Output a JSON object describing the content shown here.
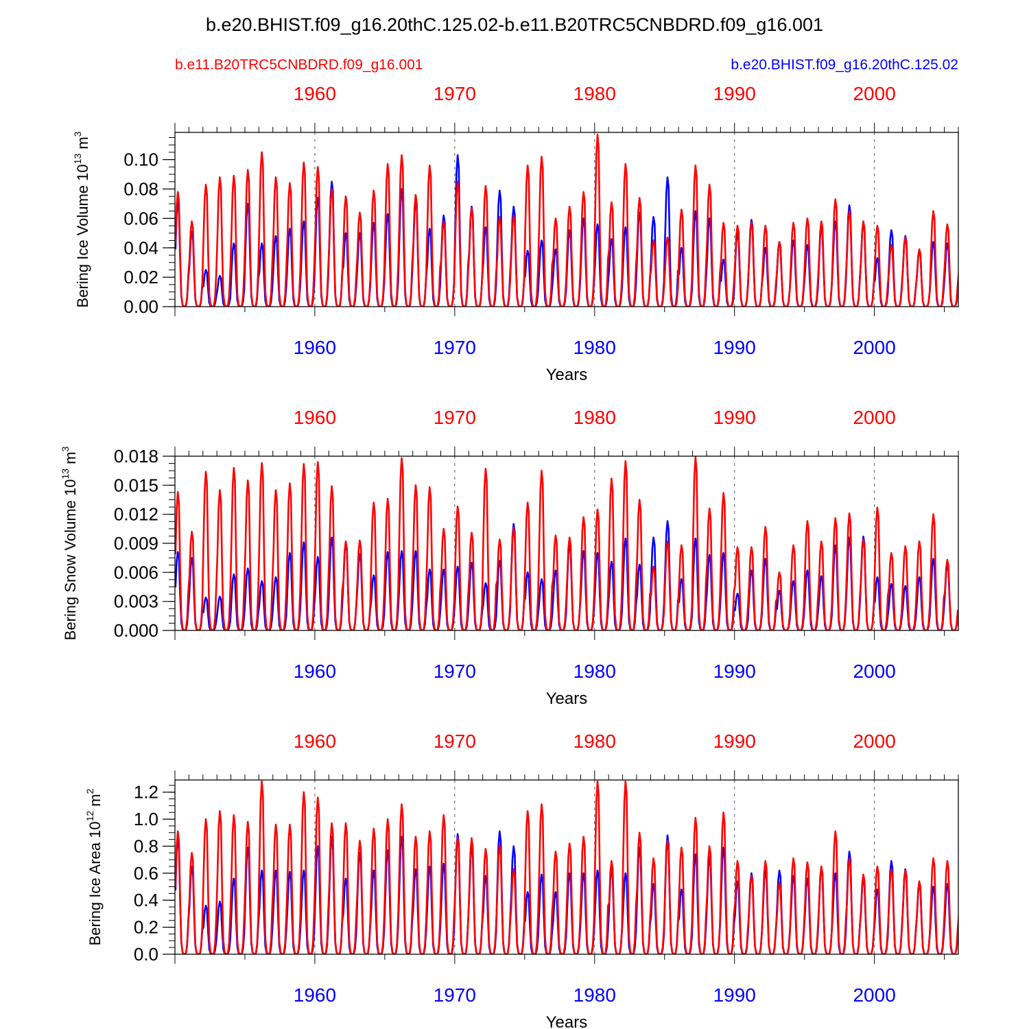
{
  "title": "b.e20.BHIST.f09_g16.20thC.125.02-b.e11.B20TRC5CNBDRD.f09_g16.001",
  "colors": {
    "red": "#ff0000",
    "blue": "#0000ff",
    "axis": "#000000",
    "gridline": "#555555"
  },
  "case_labels": {
    "red": "b.e11.B20TRC5CNBDRD.f09_g16.001",
    "blue": "b.e20.BHIST.f09_g16.20thC.125.02"
  },
  "chart_data": [
    {
      "type": "line",
      "name": "bering-ice-volume",
      "ylabel": {
        "main": "Bering Ice Volume 10",
        "sup": "13",
        "unit": " m",
        "unit_sup": "3"
      },
      "xlabel": "Years",
      "xlim": [
        1950,
        2006
      ],
      "top_axis_years": [
        "1960",
        "1970",
        "1980",
        "1990",
        "2000"
      ],
      "bottom_axis_years": [
        "1960",
        "1970",
        "1980",
        "1990",
        "2000"
      ],
      "ylim": [
        0,
        0.1185
      ],
      "yticks": [
        "0.00",
        "0.02",
        "0.04",
        "0.06",
        "0.08",
        "0.10"
      ],
      "ytick_values": [
        0,
        0.02,
        0.04,
        0.06,
        0.08,
        0.1
      ],
      "minor_step": 0.005,
      "first_year": 1950,
      "series": [
        {
          "name": "b.e11.B20TRC5CNBDRD.f09_g16.001",
          "color": "red",
          "annual_max": [
            0.078,
            0.058,
            0.083,
            0.088,
            0.089,
            0.093,
            0.105,
            0.088,
            0.084,
            0.098,
            0.095,
            0.08,
            0.075,
            0.064,
            0.079,
            0.097,
            0.103,
            0.076,
            0.096,
            0.058,
            0.085,
            0.067,
            0.082,
            0.061,
            0.062,
            0.096,
            0.102,
            0.06,
            0.068,
            0.078,
            0.117,
            0.071,
            0.097,
            0.074,
            0.045,
            0.047,
            0.066,
            0.096,
            0.083,
            0.057,
            0.055,
            0.057,
            0.055,
            0.044,
            0.057,
            0.06,
            0.058,
            0.073,
            0.065,
            0.058,
            0.055,
            0.042,
            0.047,
            0.039,
            0.065,
            0.056,
            0.044
          ]
        },
        {
          "name": "b.e20.BHIST.f09_g16.20thC.125.02",
          "color": "blue",
          "annual_max": [
            0.071,
            0.051,
            0.025,
            0.021,
            0.043,
            0.07,
            0.043,
            0.048,
            0.053,
            0.058,
            0.074,
            0.085,
            0.05,
            0.05,
            0.057,
            0.063,
            0.08,
            0.072,
            0.053,
            0.062,
            0.103,
            0.068,
            0.054,
            0.079,
            0.068,
            0.038,
            0.045,
            0.039,
            0.052,
            0.06,
            0.056,
            0.046,
            0.054,
            0.064,
            0.061,
            0.088,
            0.04,
            0.065,
            0.06,
            0.032,
            0.05,
            0.059,
            0.04,
            0.044,
            0.045,
            0.042,
            0.054,
            0.058,
            0.069,
            0.057,
            0.033,
            0.052,
            0.048,
            0.038,
            0.044,
            0.043,
            0.014
          ]
        }
      ]
    },
    {
      "type": "line",
      "name": "bering-snow-volume",
      "ylabel": {
        "main": "Bering Snow Volume 10",
        "sup": "13",
        "unit": " m",
        "unit_sup": "3"
      },
      "xlabel": "Years",
      "xlim": [
        1950,
        2006
      ],
      "top_axis_years": [
        "1960",
        "1970",
        "1980",
        "1990",
        "2000"
      ],
      "bottom_axis_years": [
        "1960",
        "1970",
        "1980",
        "1990",
        "2000"
      ],
      "ylim": [
        0,
        0.018
      ],
      "yticks": [
        "0.000",
        "0.003",
        "0.006",
        "0.009",
        "0.012",
        "0.015",
        "0.018"
      ],
      "ytick_values": [
        0,
        0.003,
        0.006,
        0.009,
        0.012,
        0.015,
        0.018
      ],
      "minor_step": 0.00075,
      "first_year": 1950,
      "series": [
        {
          "name": "b.e11.B20TRC5CNBDRD.f09_g16.001",
          "color": "red",
          "annual_max": [
            0.0143,
            0.0102,
            0.0164,
            0.0145,
            0.0168,
            0.0155,
            0.0173,
            0.0145,
            0.0152,
            0.0172,
            0.0174,
            0.0149,
            0.0092,
            0.0093,
            0.0132,
            0.0136,
            0.0178,
            0.015,
            0.0148,
            0.0105,
            0.0128,
            0.0101,
            0.0167,
            0.0094,
            0.0106,
            0.0132,
            0.0165,
            0.0098,
            0.0096,
            0.0117,
            0.0125,
            0.0157,
            0.0175,
            0.0135,
            0.0066,
            0.0092,
            0.0088,
            0.0179,
            0.0126,
            0.0142,
            0.0086,
            0.0086,
            0.0107,
            0.006,
            0.0088,
            0.0113,
            0.0092,
            0.0116,
            0.0121,
            0.0094,
            0.0127,
            0.008,
            0.0087,
            0.0092,
            0.012,
            0.0073,
            0.0006
          ]
        },
        {
          "name": "b.e20.BHIST.f09_g16.20thC.125.02",
          "color": "blue",
          "annual_max": [
            0.0081,
            0.0075,
            0.0034,
            0.0035,
            0.0058,
            0.0064,
            0.0051,
            0.0055,
            0.008,
            0.0091,
            0.0076,
            0.0096,
            0.009,
            0.0079,
            0.0057,
            0.0081,
            0.0082,
            0.0082,
            0.0063,
            0.0063,
            0.0066,
            0.007,
            0.0049,
            0.0072,
            0.011,
            0.006,
            0.0053,
            0.0062,
            0.0089,
            0.0082,
            0.008,
            0.0071,
            0.0095,
            0.0068,
            0.0096,
            0.0113,
            0.0053,
            0.0095,
            0.0078,
            0.008,
            0.0038,
            0.0062,
            0.0074,
            0.0041,
            0.0051,
            0.0062,
            0.0056,
            0.0088,
            0.0096,
            0.0097,
            0.0055,
            0.0048,
            0.0046,
            0.0055,
            0.0074,
            0.0068,
            0.0006
          ]
        }
      ]
    },
    {
      "type": "line",
      "name": "bering-ice-area",
      "ylabel": {
        "main": "Bering Ice Area 10",
        "sup": "12",
        "unit": " m",
        "unit_sup": "2"
      },
      "xlabel": "Years",
      "xlim": [
        1950,
        2006
      ],
      "top_axis_years": [
        "1960",
        "1970",
        "1980",
        "1990",
        "2000"
      ],
      "bottom_axis_years": [
        "1960",
        "1970",
        "1980",
        "1990",
        "2000"
      ],
      "ylim": [
        0,
        1.29
      ],
      "yticks": [
        "0.0",
        "0.2",
        "0.4",
        "0.6",
        "0.8",
        "1.0",
        "1.2"
      ],
      "ytick_values": [
        0,
        0.2,
        0.4,
        0.6,
        0.8,
        1.0,
        1.2
      ],
      "minor_step": 0.05,
      "first_year": 1950,
      "series": [
        {
          "name": "b.e11.B20TRC5CNBDRD.f09_g16.001",
          "color": "red",
          "annual_max": [
            0.91,
            0.75,
            1.0,
            1.06,
            1.03,
            0.98,
            1.28,
            0.96,
            0.96,
            1.2,
            1.16,
            0.97,
            0.97,
            0.84,
            0.93,
            1.0,
            1.11,
            0.87,
            0.91,
            1.03,
            0.86,
            0.86,
            0.78,
            0.81,
            0.63,
            1.06,
            1.11,
            0.76,
            0.82,
            0.87,
            1.28,
            0.69,
            1.28,
            0.9,
            0.71,
            0.84,
            0.79,
            1.01,
            0.8,
            1.05,
            0.69,
            0.58,
            0.69,
            0.53,
            0.71,
            0.68,
            0.65,
            0.91,
            0.71,
            0.59,
            0.65,
            0.63,
            0.62,
            0.54,
            0.71,
            0.69,
            0.54
          ]
        },
        {
          "name": "b.e20.BHIST.f09_g16.20thC.125.02",
          "color": "blue",
          "annual_max": [
            0.86,
            0.65,
            0.36,
            0.39,
            0.56,
            0.79,
            0.62,
            0.62,
            0.61,
            0.62,
            0.8,
            0.87,
            0.56,
            0.75,
            0.62,
            0.77,
            0.87,
            0.63,
            0.65,
            0.67,
            0.89,
            0.8,
            0.58,
            0.91,
            0.8,
            0.46,
            0.59,
            0.46,
            0.6,
            0.6,
            0.62,
            0.63,
            0.6,
            0.79,
            0.52,
            0.88,
            0.48,
            0.74,
            0.72,
            0.79,
            0.54,
            0.6,
            0.62,
            0.62,
            0.58,
            0.56,
            0.64,
            0.6,
            0.76,
            0.56,
            0.48,
            0.69,
            0.63,
            0.52,
            0.5,
            0.52,
            0.32
          ]
        }
      ]
    }
  ]
}
